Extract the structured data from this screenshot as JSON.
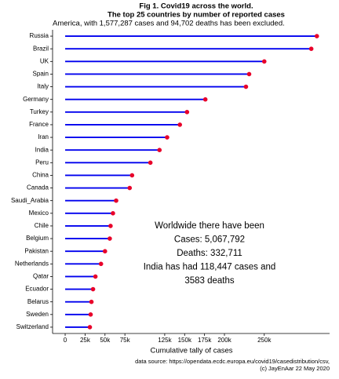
{
  "chart_data": {
    "type": "lollipop",
    "title": [
      "Fig 1. Covid19 across the world.",
      "The top 25 countries by number of reported cases"
    ],
    "subtitle": "America, with 1,577,287 cases and 94,702 deaths has been excluded.",
    "categories": [
      "Russia",
      "Brazil",
      "UK",
      "Spain",
      "Italy",
      "Germany",
      "Turkey",
      "France",
      "Iran",
      "India",
      "Peru",
      "China",
      "Canada",
      "Saudi_Arabia",
      "Mexico",
      "Chile",
      "Belgium",
      "Pakistan",
      "Netherlands",
      "Qatar",
      "Ecuador",
      "Belarus",
      "Sweden",
      "Switzerland"
    ],
    "values": [
      316000,
      309000,
      250000,
      231000,
      227000,
      176000,
      153000,
      144000,
      128000,
      118447,
      107000,
      84000,
      81000,
      64000,
      60000,
      57000,
      56000,
      50000,
      45000,
      38000,
      35000,
      33000,
      32000,
      31000
    ],
    "color": "#0000ee",
    "marker_color": "#e8002a",
    "xlim": [
      -15800,
      332000
    ],
    "xticks": [
      {
        "value": 0,
        "label": "0"
      },
      {
        "value": 25000,
        "label": "25k"
      },
      {
        "value": 50000,
        "label": "50k"
      },
      {
        "value": 75000,
        "label": "75k"
      },
      {
        "value": 125000,
        "label": "125k"
      },
      {
        "value": 150000,
        "label": "150k"
      },
      {
        "value": 175000,
        "label": "175k"
      },
      {
        "value": 200000,
        "label": "200k"
      },
      {
        "value": 250000,
        "label": "250k"
      }
    ],
    "xlabel": "Cumulative tally of cases",
    "annotation": [
      "Worldwide there have been",
      "Cases: 5,067,792",
      "Deaths: 332,711",
      "India has had 118,447 cases and",
      "3583 deaths"
    ],
    "caption": [
      "data source: https://opendata.ecdc.europa.eu/covid19/casedistribution/csv,",
      "(c) JayEnAar  22 May 2020"
    ]
  }
}
